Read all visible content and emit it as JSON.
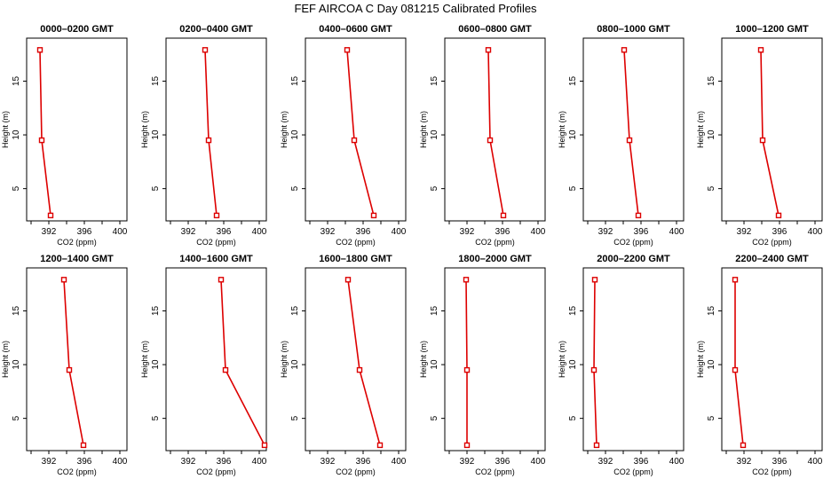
{
  "title": "FEF AIRCOA C  Day 081215  Calibrated Profiles",
  "colors": {
    "series": "#dd0000",
    "axis": "#000000",
    "background": "#ffffff"
  },
  "chart_data": [
    {
      "type": "line",
      "title": "0000–0200 GMT",
      "xlabel": "CO2 (ppm)",
      "ylabel": "Height (m)",
      "xlim": [
        389.5,
        400.8
      ],
      "ylim": [
        2,
        19
      ],
      "xticks": [
        392,
        396,
        400
      ],
      "xticks_minor": [
        390,
        394,
        398
      ],
      "yticks": [
        5,
        10,
        15
      ],
      "x": [
        391.0,
        391.2,
        392.2
      ],
      "y": [
        17.9,
        9.5,
        2.5
      ]
    },
    {
      "type": "line",
      "title": "0200–0400 GMT",
      "xlabel": "CO2 (ppm)",
      "ylabel": "Height (m)",
      "xlim": [
        389.5,
        400.8
      ],
      "ylim": [
        2,
        19
      ],
      "xticks": [
        392,
        396,
        400
      ],
      "xticks_minor": [
        390,
        394,
        398
      ],
      "yticks": [
        5,
        10,
        15
      ],
      "x": [
        393.9,
        394.3,
        395.2
      ],
      "y": [
        17.9,
        9.5,
        2.5
      ]
    },
    {
      "type": "line",
      "title": "0400–0600 GMT",
      "xlabel": "CO2 (ppm)",
      "ylabel": "Height (m)",
      "xlim": [
        389.5,
        400.8
      ],
      "ylim": [
        2,
        19
      ],
      "xticks": [
        392,
        396,
        400
      ],
      "xticks_minor": [
        390,
        394,
        398
      ],
      "yticks": [
        5,
        10,
        15
      ],
      "x": [
        394.2,
        395.0,
        397.2
      ],
      "y": [
        17.9,
        9.5,
        2.5
      ]
    },
    {
      "type": "line",
      "title": "0600–0800 GMT",
      "xlabel": "CO2 (ppm)",
      "ylabel": "Height (m)",
      "xlim": [
        389.5,
        400.8
      ],
      "ylim": [
        2,
        19
      ],
      "xticks": [
        392,
        396,
        400
      ],
      "xticks_minor": [
        390,
        394,
        398
      ],
      "yticks": [
        5,
        10,
        15
      ],
      "x": [
        394.4,
        394.6,
        396.1
      ],
      "y": [
        17.9,
        9.5,
        2.5
      ]
    },
    {
      "type": "line",
      "title": "0800–1000 GMT",
      "xlabel": "CO2 (ppm)",
      "ylabel": "Height (m)",
      "xlim": [
        389.5,
        400.8
      ],
      "ylim": [
        2,
        19
      ],
      "xticks": [
        392,
        396,
        400
      ],
      "xticks_minor": [
        390,
        394,
        398
      ],
      "yticks": [
        5,
        10,
        15
      ],
      "x": [
        394.1,
        394.7,
        395.7
      ],
      "y": [
        17.9,
        9.5,
        2.5
      ]
    },
    {
      "type": "line",
      "title": "1000–1200 GMT",
      "xlabel": "CO2 (ppm)",
      "ylabel": "Height (m)",
      "xlim": [
        389.5,
        400.8
      ],
      "ylim": [
        2,
        19
      ],
      "xticks": [
        392,
        396,
        400
      ],
      "xticks_minor": [
        390,
        394,
        398
      ],
      "yticks": [
        5,
        10,
        15
      ],
      "x": [
        393.9,
        394.1,
        395.9
      ],
      "y": [
        17.9,
        9.5,
        2.5
      ]
    },
    {
      "type": "line",
      "title": "1200–1400 GMT",
      "xlabel": "CO2 (ppm)",
      "ylabel": "Height (m)",
      "xlim": [
        389.5,
        400.8
      ],
      "ylim": [
        2,
        19
      ],
      "xticks": [
        392,
        396,
        400
      ],
      "xticks_minor": [
        390,
        394,
        398
      ],
      "yticks": [
        5,
        10,
        15
      ],
      "x": [
        393.7,
        394.3,
        395.9
      ],
      "y": [
        17.9,
        9.5,
        2.5
      ]
    },
    {
      "type": "line",
      "title": "1400–1600 GMT",
      "xlabel": "CO2 (ppm)",
      "ylabel": "Height (m)",
      "xlim": [
        389.5,
        400.8
      ],
      "ylim": [
        2,
        19
      ],
      "xticks": [
        392,
        396,
        400
      ],
      "xticks_minor": [
        390,
        394,
        398
      ],
      "yticks": [
        5,
        10,
        15
      ],
      "x": [
        395.7,
        396.2,
        400.6
      ],
      "y": [
        17.9,
        9.5,
        2.5
      ]
    },
    {
      "type": "line",
      "title": "1600–1800 GMT",
      "xlabel": "CO2 (ppm)",
      "ylabel": "Height (m)",
      "xlim": [
        389.5,
        400.8
      ],
      "ylim": [
        2,
        19
      ],
      "xticks": [
        392,
        396,
        400
      ],
      "xticks_minor": [
        390,
        394,
        398
      ],
      "yticks": [
        5,
        10,
        15
      ],
      "x": [
        394.3,
        395.6,
        397.9
      ],
      "y": [
        17.9,
        9.5,
        2.5
      ]
    },
    {
      "type": "line",
      "title": "1800–2000 GMT",
      "xlabel": "CO2 (ppm)",
      "ylabel": "Height (m)",
      "xlim": [
        389.5,
        400.8
      ],
      "ylim": [
        2,
        19
      ],
      "xticks": [
        392,
        396,
        400
      ],
      "xticks_minor": [
        390,
        394,
        398
      ],
      "yticks": [
        5,
        10,
        15
      ],
      "x": [
        391.9,
        392.0,
        392.0
      ],
      "y": [
        17.9,
        9.5,
        2.5
      ]
    },
    {
      "type": "line",
      "title": "2000–2200 GMT",
      "xlabel": "CO2 (ppm)",
      "ylabel": "Height (m)",
      "xlim": [
        389.5,
        400.8
      ],
      "ylim": [
        2,
        19
      ],
      "xticks": [
        392,
        396,
        400
      ],
      "xticks_minor": [
        390,
        394,
        398
      ],
      "yticks": [
        5,
        10,
        15
      ],
      "x": [
        390.8,
        390.7,
        391.0
      ],
      "y": [
        17.9,
        9.5,
        2.5
      ]
    },
    {
      "type": "line",
      "title": "2200–2400 GMT",
      "xlabel": "CO2 (ppm)",
      "ylabel": "Height (m)",
      "xlim": [
        389.5,
        400.8
      ],
      "ylim": [
        2,
        19
      ],
      "xticks": [
        392,
        396,
        400
      ],
      "xticks_minor": [
        390,
        394,
        398
      ],
      "yticks": [
        5,
        10,
        15
      ],
      "x": [
        391.0,
        391.0,
        391.9
      ],
      "y": [
        17.9,
        9.5,
        2.5
      ]
    }
  ]
}
